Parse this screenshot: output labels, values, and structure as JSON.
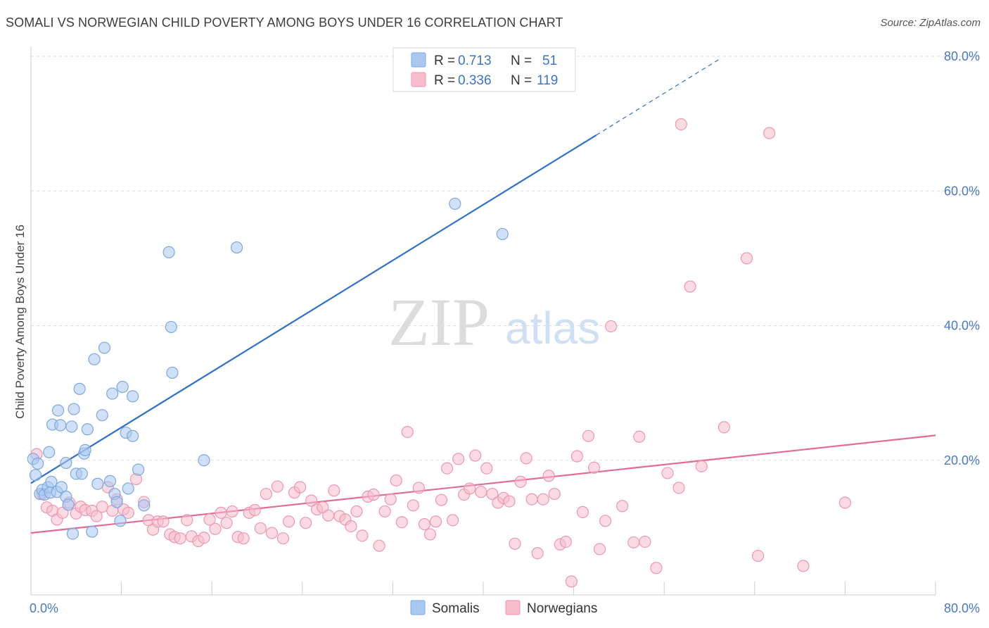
{
  "title": "SOMALI VS NORWEGIAN CHILD POVERTY AMONG BOYS UNDER 16 CORRELATION CHART",
  "source": "Source: ZipAtlas.com",
  "watermark": {
    "zip": "ZIP",
    "atlas": "atlas"
  },
  "colors": {
    "somali_fill": "#a9c8f0",
    "somali_stroke": "#7ea7e0",
    "somali_line": "#2f6fcb",
    "norwegian_fill": "#f7bccd",
    "norwegian_stroke": "#ec97b0",
    "norwegian_line": "#e16c96",
    "tick_text": "#4a78c5",
    "grid": "#dddddd"
  },
  "legend": {
    "rows": [
      {
        "r_label": "R = ",
        "r_value": "0.713",
        "n_label": "N = ",
        "n_value": "51"
      },
      {
        "r_label": "R = ",
        "r_value": "0.336",
        "n_label": "N = ",
        "n_value": "119"
      }
    ]
  },
  "bottom_legend": [
    "Somalis",
    "Norwegians"
  ],
  "chart_data": {
    "type": "scatter",
    "title": "SOMALI VS NORWEGIAN CHILD POVERTY AMONG BOYS UNDER 16 CORRELATION CHART",
    "xlabel": "",
    "ylabel": "Child Poverty Among Boys Under 16",
    "xlim": [
      0,
      80
    ],
    "ylim": [
      0,
      80
    ],
    "x_tick_labels": [
      {
        "value": 0,
        "label": "0.0%"
      },
      {
        "value": 80,
        "label": "80.0%"
      }
    ],
    "y_tick_labels": [
      {
        "value": 20,
        "label": "20.0%"
      },
      {
        "value": 40,
        "label": "40.0%"
      },
      {
        "value": 60,
        "label": "60.0%"
      },
      {
        "value": 80,
        "label": "80.0%"
      }
    ],
    "legend_position": "top-center",
    "grid": true,
    "series": [
      {
        "name": "Somalis",
        "r": 0.713,
        "n": 51,
        "trend": {
          "x1": 0,
          "y1": 16.6,
          "x2": 50,
          "y2": 68.3,
          "dash_x2": 61,
          "dash_y2": 79.7
        },
        "points": [
          [
            0.2,
            20.2
          ],
          [
            0.4,
            17.8
          ],
          [
            0.6,
            19.5
          ],
          [
            0.8,
            15.0
          ],
          [
            1.0,
            15.6
          ],
          [
            1.2,
            14.9
          ],
          [
            1.5,
            16.0
          ],
          [
            1.7,
            15.2
          ],
          [
            1.6,
            21.2
          ],
          [
            1.8,
            16.8
          ],
          [
            1.9,
            25.3
          ],
          [
            2.3,
            15.3
          ],
          [
            2.4,
            27.4
          ],
          [
            2.6,
            25.2
          ],
          [
            2.7,
            16.0
          ],
          [
            3.1,
            19.6
          ],
          [
            3.1,
            14.6
          ],
          [
            3.3,
            13.4
          ],
          [
            3.6,
            25.0
          ],
          [
            3.7,
            9.1
          ],
          [
            3.8,
            27.6
          ],
          [
            4.0,
            18.0
          ],
          [
            4.3,
            30.6
          ],
          [
            4.5,
            18.0
          ],
          [
            4.7,
            21.0
          ],
          [
            4.8,
            21.5
          ],
          [
            5.0,
            24.6
          ],
          [
            5.4,
            9.4
          ],
          [
            5.6,
            35.0
          ],
          [
            5.9,
            16.5
          ],
          [
            6.3,
            26.7
          ],
          [
            6.5,
            36.7
          ],
          [
            7.0,
            16.9
          ],
          [
            7.2,
            29.9
          ],
          [
            7.4,
            15.0
          ],
          [
            7.6,
            13.8
          ],
          [
            7.9,
            11.0
          ],
          [
            8.1,
            30.9
          ],
          [
            8.4,
            24.1
          ],
          [
            8.6,
            15.8
          ],
          [
            9.0,
            23.6
          ],
          [
            9.0,
            29.5
          ],
          [
            9.5,
            18.6
          ],
          [
            10.0,
            13.3
          ],
          [
            12.2,
            50.9
          ],
          [
            12.4,
            39.8
          ],
          [
            12.5,
            33.0
          ],
          [
            15.3,
            20.0
          ],
          [
            18.2,
            51.6
          ],
          [
            37.5,
            58.1
          ],
          [
            41.7,
            53.6
          ]
        ]
      },
      {
        "name": "Norwegians",
        "r": 0.336,
        "n": 119,
        "trend": {
          "x1": 0,
          "y1": 9.2,
          "x2": 80,
          "y2": 23.7
        },
        "points": [
          [
            0.5,
            20.9
          ],
          [
            1.0,
            15.0
          ],
          [
            1.4,
            13.0
          ],
          [
            1.9,
            12.5
          ],
          [
            2.3,
            11.2
          ],
          [
            2.8,
            12.2
          ],
          [
            3.4,
            13.7
          ],
          [
            4.0,
            12.1
          ],
          [
            4.4,
            13.1
          ],
          [
            4.8,
            12.6
          ],
          [
            5.4,
            12.5
          ],
          [
            5.8,
            11.7
          ],
          [
            6.3,
            13.1
          ],
          [
            6.8,
            16.0
          ],
          [
            7.2,
            12.5
          ],
          [
            7.6,
            14.2
          ],
          [
            8.2,
            12.7
          ],
          [
            8.6,
            12.2
          ],
          [
            9.3,
            17.2
          ],
          [
            10.0,
            13.8
          ],
          [
            10.4,
            11.1
          ],
          [
            10.8,
            9.7
          ],
          [
            11.2,
            10.9
          ],
          [
            11.7,
            10.9
          ],
          [
            12.3,
            9.0
          ],
          [
            12.7,
            8.6
          ],
          [
            13.2,
            8.4
          ],
          [
            13.8,
            11.1
          ],
          [
            14.2,
            8.7
          ],
          [
            14.8,
            8.0
          ],
          [
            15.3,
            8.5
          ],
          [
            15.8,
            11.2
          ],
          [
            16.3,
            9.8
          ],
          [
            16.8,
            12.2
          ],
          [
            17.3,
            10.7
          ],
          [
            17.8,
            12.4
          ],
          [
            18.3,
            8.6
          ],
          [
            18.8,
            8.4
          ],
          [
            19.3,
            12.2
          ],
          [
            19.8,
            12.6
          ],
          [
            20.3,
            9.9
          ],
          [
            20.8,
            15.0
          ],
          [
            21.3,
            9.2
          ],
          [
            21.8,
            16.1
          ],
          [
            22.3,
            8.4
          ],
          [
            22.8,
            10.9
          ],
          [
            23.3,
            15.2
          ],
          [
            23.8,
            16.0
          ],
          [
            24.3,
            10.7
          ],
          [
            24.8,
            14.0
          ],
          [
            25.3,
            12.7
          ],
          [
            25.8,
            13.0
          ],
          [
            26.3,
            11.8
          ],
          [
            26.8,
            15.5
          ],
          [
            27.3,
            11.7
          ],
          [
            27.8,
            11.2
          ],
          [
            28.3,
            10.2
          ],
          [
            28.8,
            12.4
          ],
          [
            29.3,
            8.8
          ],
          [
            29.8,
            14.6
          ],
          [
            30.3,
            14.9
          ],
          [
            30.8,
            7.3
          ],
          [
            31.3,
            12.4
          ],
          [
            31.8,
            14.2
          ],
          [
            32.3,
            17.0
          ],
          [
            32.8,
            10.8
          ],
          [
            33.3,
            24.2
          ],
          [
            33.8,
            13.3
          ],
          [
            34.3,
            15.9
          ],
          [
            34.8,
            10.5
          ],
          [
            35.3,
            9.0
          ],
          [
            35.8,
            10.9
          ],
          [
            36.3,
            14.1
          ],
          [
            36.8,
            18.8
          ],
          [
            37.3,
            11.1
          ],
          [
            37.8,
            20.2
          ],
          [
            38.3,
            14.9
          ],
          [
            38.8,
            15.8
          ],
          [
            39.3,
            20.7
          ],
          [
            39.8,
            15.3
          ],
          [
            40.3,
            18.8
          ],
          [
            40.8,
            15.0
          ],
          [
            41.3,
            13.7
          ],
          [
            41.8,
            14.4
          ],
          [
            42.3,
            13.9
          ],
          [
            42.8,
            7.6
          ],
          [
            43.3,
            16.8
          ],
          [
            43.8,
            20.3
          ],
          [
            44.3,
            14.2
          ],
          [
            44.8,
            6.2
          ],
          [
            45.3,
            14.2
          ],
          [
            45.8,
            17.7
          ],
          [
            46.3,
            15.0
          ],
          [
            46.8,
            7.5
          ],
          [
            47.3,
            7.9
          ],
          [
            47.8,
            2.0
          ],
          [
            48.3,
            20.6
          ],
          [
            48.8,
            12.3
          ],
          [
            49.3,
            23.6
          ],
          [
            49.8,
            18.9
          ],
          [
            50.3,
            6.8
          ],
          [
            50.8,
            11.0
          ],
          [
            51.3,
            39.9
          ],
          [
            52.3,
            13.2
          ],
          [
            53.3,
            7.8
          ],
          [
            53.8,
            23.5
          ],
          [
            54.3,
            7.9
          ],
          [
            55.3,
            4.0
          ],
          [
            56.3,
            18.1
          ],
          [
            57.3,
            15.9
          ],
          [
            57.5,
            69.9
          ],
          [
            58.3,
            45.8
          ],
          [
            59.3,
            19.1
          ],
          [
            61.3,
            24.9
          ],
          [
            63.3,
            50.0
          ],
          [
            64.3,
            5.8
          ],
          [
            65.3,
            68.6
          ],
          [
            68.3,
            4.3
          ],
          [
            72.0,
            13.7
          ]
        ]
      }
    ]
  }
}
